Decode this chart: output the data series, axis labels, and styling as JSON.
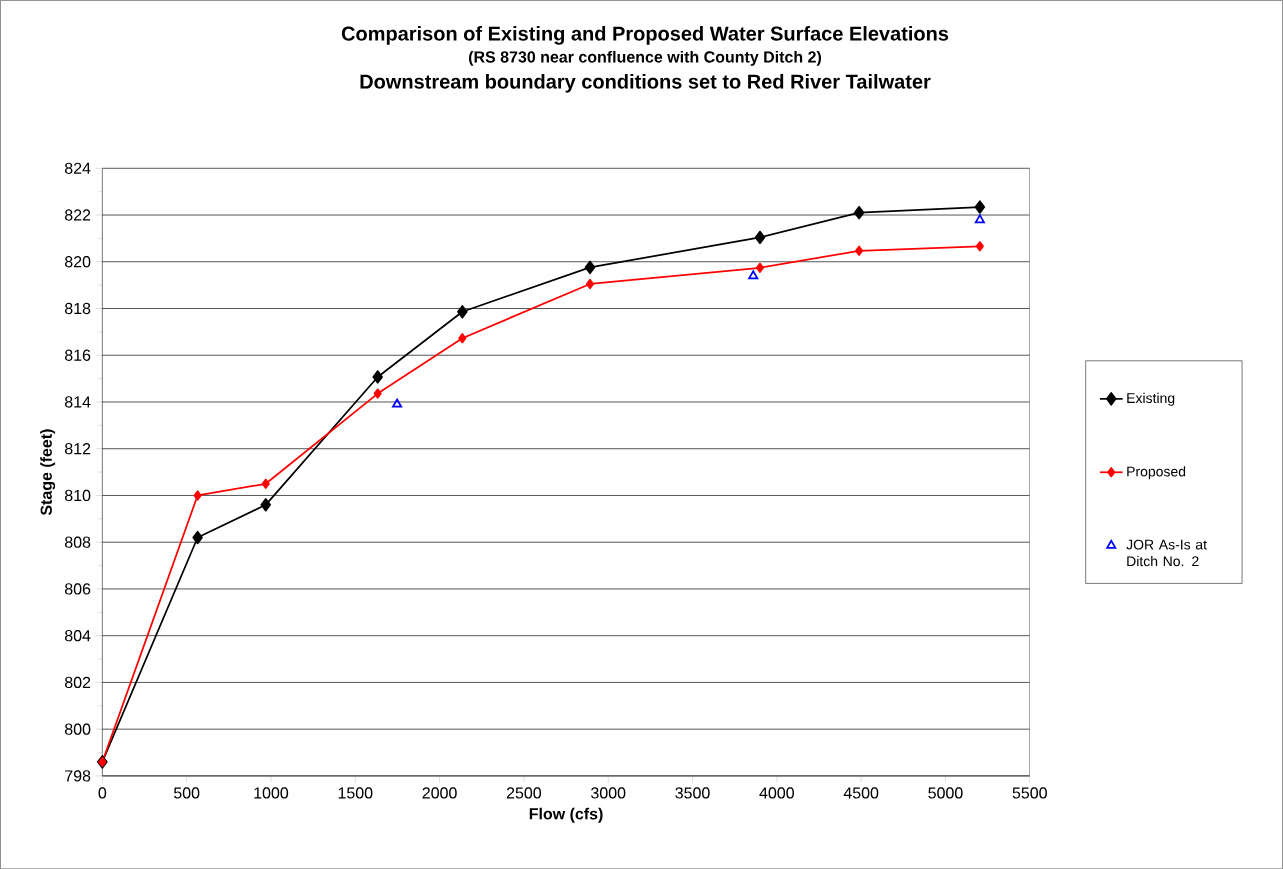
{
  "chart_data": {
    "type": "line",
    "title": "Comparison of Existing and Proposed Water Surface Elevations",
    "subtitle": "(RS 8730 near confluence with County Ditch 2)",
    "annotations": [
      "Downstream boundary conditions set to Red River Tailwater"
    ],
    "xlabel": "Flow (cfs)",
    "ylabel": "Stage (feet)",
    "xlim": [
      0,
      5500
    ],
    "xticks": [
      0,
      500,
      1000,
      1500,
      2000,
      2500,
      3000,
      3500,
      4000,
      4500,
      5000,
      5500
    ],
    "ylim": [
      798,
      824
    ],
    "yticks": [
      798,
      800,
      802,
      804,
      806,
      808,
      810,
      812,
      814,
      816,
      818,
      820,
      822,
      824
    ],
    "grid": "y",
    "legend": "right",
    "marker": "diamond",
    "line_style": "solid",
    "series": [
      {
        "name": "Existing",
        "color": "#000000",
        "x": [
          0,
          565,
          969,
          1633,
          2135,
          2892,
          3900,
          4488,
          5204
        ],
        "values": [
          798.6,
          808.2,
          809.6,
          815.07,
          817.86,
          819.76,
          821.04,
          822.1,
          822.34
        ]
      },
      {
        "name": "Proposed",
        "color": "#ff0000",
        "x": [
          0,
          565,
          969,
          1633,
          2135,
          2892,
          3900,
          4488,
          5204
        ],
        "values": [
          798.6,
          810.0,
          810.5,
          814.36,
          816.73,
          819.05,
          819.74,
          820.47,
          820.66
        ]
      },
      {
        "name": "JOR As-Is at Ditch No. 2",
        "type": "scatter",
        "marker": "triangle",
        "color": "#0000ff",
        "x": [
          1748,
          3860,
          5204
        ],
        "values": [
          813.9,
          819.39,
          821.79
        ]
      }
    ]
  }
}
